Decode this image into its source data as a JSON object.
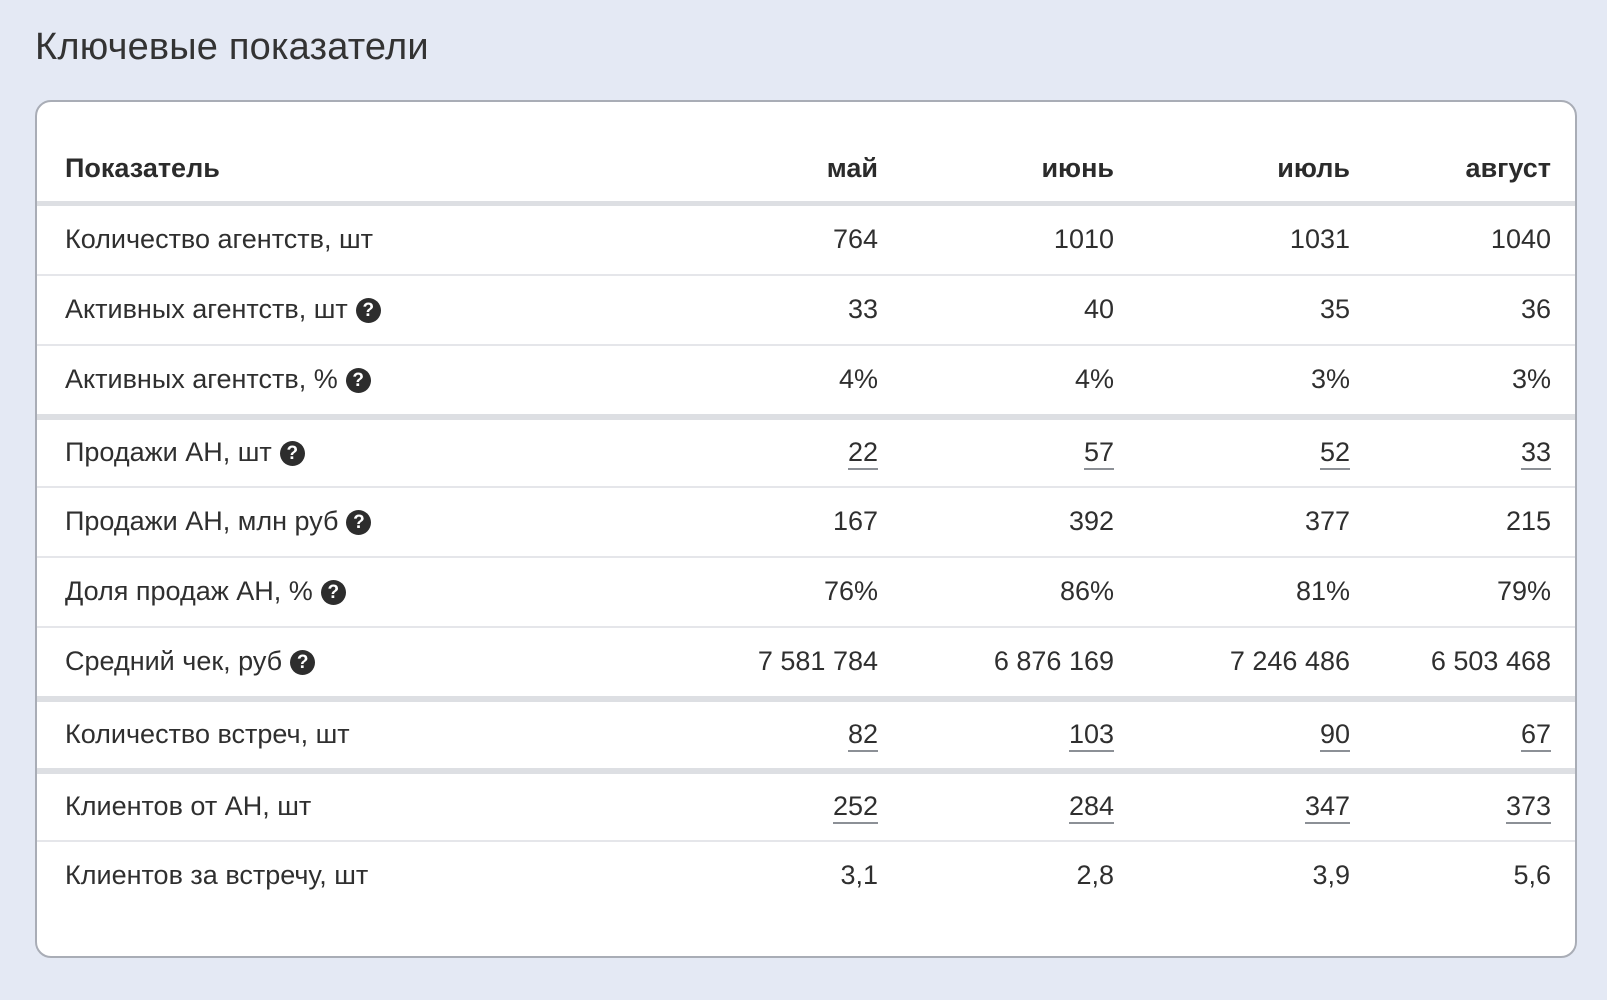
{
  "page": {
    "title": "Ключевые показатели"
  },
  "table": {
    "headers": [
      "Показатель",
      "май",
      "июнь",
      "июль",
      "август"
    ],
    "rows": [
      {
        "label": "Количество агентств, шт",
        "help": false,
        "link": false,
        "values": [
          "764",
          "1010",
          "1031",
          "1040"
        ]
      },
      {
        "label": "Активных агентств, шт",
        "help": true,
        "link": false,
        "values": [
          "33",
          "40",
          "35",
          "36"
        ]
      },
      {
        "label": "Активных агентств, %",
        "help": true,
        "link": false,
        "values": [
          "4%",
          "4%",
          "3%",
          "3%"
        ]
      },
      {
        "label": "Продажи АН, шт",
        "help": true,
        "link": true,
        "values": [
          "22",
          "57",
          "52",
          "33"
        ]
      },
      {
        "label": "Продажи АН, млн руб",
        "help": true,
        "link": false,
        "values": [
          "167",
          "392",
          "377",
          "215"
        ]
      },
      {
        "label": "Доля продаж АН, %",
        "help": true,
        "link": false,
        "values": [
          "76%",
          "86%",
          "81%",
          "79%"
        ]
      },
      {
        "label": "Средний чек, руб",
        "help": true,
        "link": false,
        "values": [
          "7 581 784",
          "6 876 169",
          "7 246 486",
          "6 503 468"
        ]
      },
      {
        "label": "Количество встреч, шт",
        "help": false,
        "link": true,
        "values": [
          "82",
          "103",
          "90",
          "67"
        ]
      },
      {
        "label": "Клиентов от АН, шт",
        "help": false,
        "link": true,
        "values": [
          "252",
          "284",
          "347",
          "373"
        ]
      },
      {
        "label": "Клиентов за встречу, шт",
        "help": false,
        "link": false,
        "values": [
          "3,1",
          "2,8",
          "3,9",
          "5,6"
        ]
      }
    ],
    "help_icon": {
      "icon": "question-circle-icon",
      "glyph": "?"
    }
  },
  "colors": {
    "background": "#e4e9f4",
    "card": "#ffffff",
    "text": "#2f2f2f",
    "separator": "#dddfe3"
  }
}
